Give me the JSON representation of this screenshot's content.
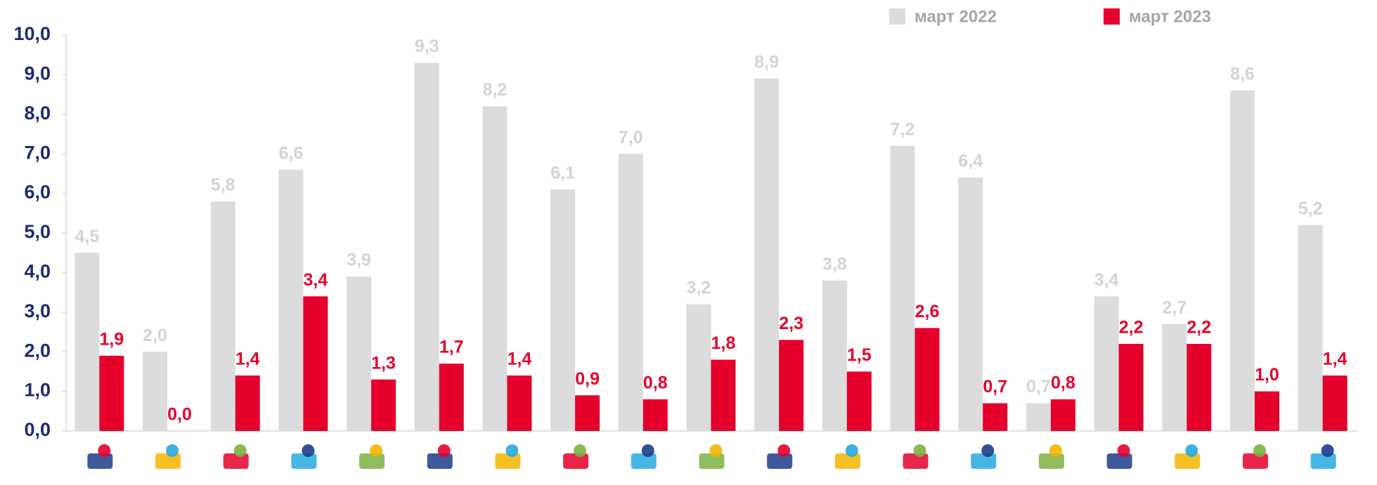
{
  "chart_data": {
    "type": "bar",
    "categories": [
      null,
      null,
      null,
      null,
      null,
      null,
      null,
      null,
      null,
      null,
      null,
      null,
      null,
      null,
      null,
      null,
      null,
      null,
      null
    ],
    "series": [
      {
        "name": "март 2022",
        "color": "#dcdcdc",
        "label_color": "#d4d4d4",
        "values": [
          4.5,
          2.0,
          5.8,
          6.6,
          3.9,
          9.3,
          8.2,
          6.1,
          7.0,
          3.2,
          8.9,
          3.8,
          7.2,
          6.4,
          0.7,
          3.4,
          2.7,
          8.6,
          5.2
        ],
        "value_labels": [
          "4,5",
          "2,0",
          "5,8",
          "6,6",
          "3,9",
          "9,3",
          "8,2",
          "6,1",
          "7,0",
          "3,2",
          "8,9",
          "3,8",
          "7,2",
          "6,4",
          "0,7",
          "3,4",
          "2,7",
          "8,6",
          "5,2"
        ]
      },
      {
        "name": "март 2023",
        "color": "#e4002b",
        "label_color": "#e4002b",
        "values": [
          1.9,
          0.0,
          1.4,
          3.4,
          1.3,
          1.7,
          1.4,
          0.9,
          0.8,
          1.8,
          2.3,
          1.5,
          2.6,
          0.7,
          0.8,
          2.2,
          2.2,
          1.0,
          1.4
        ],
        "value_labels": [
          "1,9",
          "0,0",
          "1,4",
          "3,4",
          "1,3",
          "1,7",
          "1,4",
          "0,9",
          "0,8",
          "1,8",
          "2,3",
          "1,5",
          "2,6",
          "0,7",
          "0,8",
          "2,2",
          "2,2",
          "1,0",
          "1,4"
        ]
      }
    ],
    "ylim": [
      0,
      10
    ],
    "yticks": [
      {
        "value": 0,
        "label": "0,0"
      },
      {
        "value": 1,
        "label": "1,0"
      },
      {
        "value": 2,
        "label": "2,0"
      },
      {
        "value": 3,
        "label": "3,0"
      },
      {
        "value": 4,
        "label": "4,0"
      },
      {
        "value": 5,
        "label": "5,0"
      },
      {
        "value": 6,
        "label": "6,0"
      },
      {
        "value": 7,
        "label": "7,0"
      },
      {
        "value": 8,
        "label": "8,0"
      },
      {
        "value": 9,
        "label": "9,0"
      },
      {
        "value": 10,
        "label": "10,0"
      }
    ],
    "grid": false,
    "legend": "top-right"
  }
}
